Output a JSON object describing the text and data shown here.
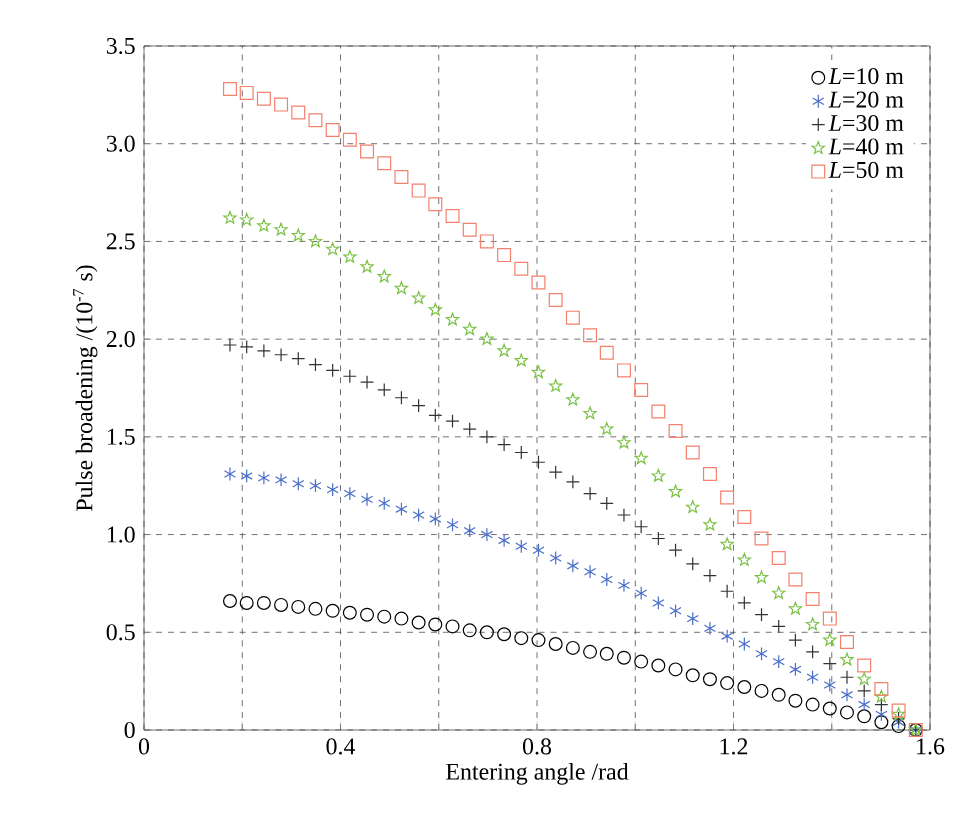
{
  "chart_data": {
    "type": "scatter",
    "xlabel": "Entering angle /rad",
    "ylabel": "Pulse broadening /(10$^{-7}$ s)",
    "x": [
      0.175,
      0.209,
      0.244,
      0.279,
      0.314,
      0.349,
      0.384,
      0.419,
      0.454,
      0.489,
      0.524,
      0.559,
      0.593,
      0.628,
      0.663,
      0.698,
      0.733,
      0.768,
      0.803,
      0.838,
      0.873,
      0.908,
      0.942,
      0.977,
      1.012,
      1.047,
      1.082,
      1.117,
      1.152,
      1.187,
      1.222,
      1.257,
      1.292,
      1.326,
      1.361,
      1.396,
      1.431,
      1.466,
      1.501,
      1.536,
      1.571
    ],
    "xlim": [
      0,
      1.6
    ],
    "ylim": [
      0,
      3.5
    ],
    "xticks": [
      0,
      {
        "value": 0.2,
        "label": null
      },
      0.4,
      {
        "value": 0.6,
        "label": null
      },
      0.8,
      {
        "value": 1.0,
        "label": null
      },
      1.2,
      {
        "value": 1.4,
        "label": null
      },
      1.6
    ],
    "yticks": [
      0,
      0.5,
      {
        "value": 1,
        "label": "1.0"
      },
      1.5,
      {
        "value": 2,
        "label": "2.0"
      },
      2.5,
      {
        "value": 3,
        "label": "3.0"
      },
      3.5
    ],
    "grid": true,
    "legend": "top right",
    "series": [
      {
        "name": "*L*=10 m",
        "color": "#000000",
        "marker": "circle",
        "values": [
          0.66,
          0.65,
          0.65,
          0.64,
          0.63,
          0.62,
          0.61,
          0.6,
          0.59,
          0.58,
          0.57,
          0.55,
          0.54,
          0.53,
          0.51,
          0.5,
          0.49,
          0.47,
          0.46,
          0.44,
          0.42,
          0.4,
          0.39,
          0.37,
          0.35,
          0.33,
          0.31,
          0.28,
          0.26,
          0.24,
          0.22,
          0.2,
          0.18,
          0.15,
          0.13,
          0.11,
          0.09,
          0.07,
          0.04,
          0.02,
          0
        ]
      },
      {
        "name": "*L*=20 m",
        "color": "#4a6fc8",
        "values": [
          1.31,
          1.3,
          1.29,
          1.28,
          1.26,
          1.25,
          1.23,
          1.21,
          1.18,
          1.16,
          1.13,
          1.1,
          1.08,
          1.05,
          1.02,
          1.0,
          0.97,
          0.94,
          0.92,
          0.88,
          0.84,
          0.81,
          0.77,
          0.74,
          0.7,
          0.65,
          0.61,
          0.57,
          0.52,
          0.48,
          0.44,
          0.39,
          0.35,
          0.31,
          0.27,
          0.23,
          0.18,
          0.13,
          0.08,
          0.04,
          0
        ]
      },
      {
        "name": "*L*=30 m",
        "color": "#333333",
        "marker": "cross",
        "values": [
          1.97,
          1.96,
          1.94,
          1.92,
          1.9,
          1.87,
          1.84,
          1.81,
          1.78,
          1.74,
          1.7,
          1.66,
          1.61,
          1.58,
          1.54,
          1.5,
          1.46,
          1.42,
          1.37,
          1.32,
          1.27,
          1.21,
          1.16,
          1.1,
          1.04,
          0.98,
          0.92,
          0.85,
          0.79,
          0.71,
          0.65,
          0.59,
          0.53,
          0.46,
          0.4,
          0.34,
          0.27,
          0.2,
          0.13,
          0.06,
          0
        ]
      },
      {
        "name": "*L*=40 m",
        "color": "#7ac143",
        "marker": "star",
        "values": [
          2.62,
          2.61,
          2.58,
          2.56,
          2.53,
          2.5,
          2.46,
          2.42,
          2.37,
          2.32,
          2.26,
          2.21,
          2.15,
          2.1,
          2.05,
          2.0,
          1.94,
          1.89,
          1.83,
          1.76,
          1.69,
          1.62,
          1.54,
          1.47,
          1.39,
          1.3,
          1.22,
          1.14,
          1.05,
          0.95,
          0.87,
          0.78,
          0.7,
          0.62,
          0.54,
          0.46,
          0.36,
          0.26,
          0.17,
          0.08,
          0
        ]
      },
      {
        "name": "*L*=50 m",
        "color": "#f4806e",
        "marker": "square",
        "values": [
          3.28,
          3.26,
          3.23,
          3.2,
          3.16,
          3.12,
          3.07,
          3.02,
          2.96,
          2.9,
          2.83,
          2.76,
          2.69,
          2.63,
          2.56,
          2.5,
          2.43,
          2.36,
          2.29,
          2.2,
          2.11,
          2.02,
          1.93,
          1.84,
          1.74,
          1.63,
          1.53,
          1.42,
          1.31,
          1.19,
          1.09,
          0.98,
          0.88,
          0.77,
          0.67,
          0.57,
          0.45,
          0.33,
          0.21,
          0.1,
          0
        ]
      }
    ]
  }
}
